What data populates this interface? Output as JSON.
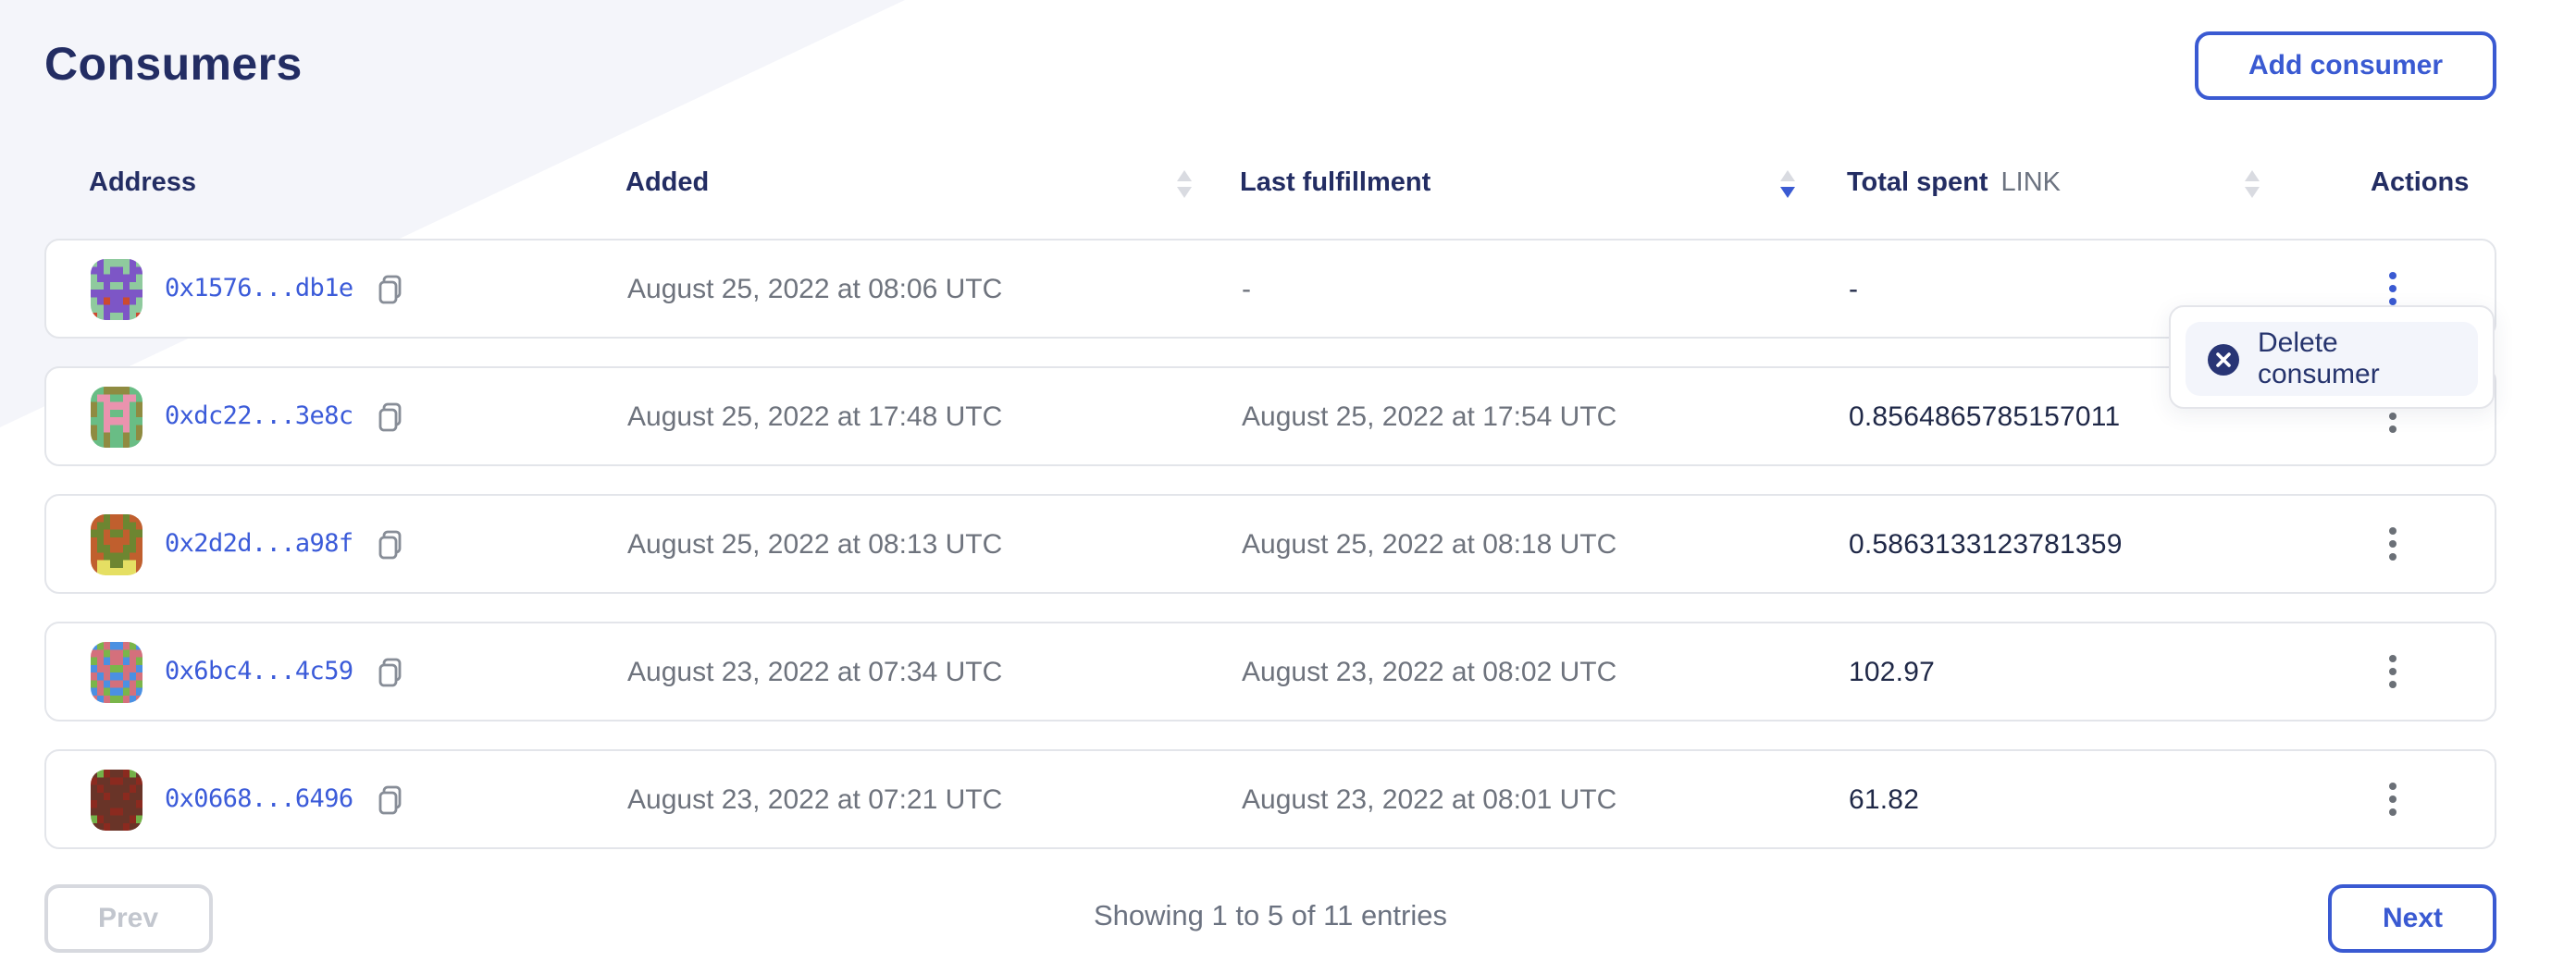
{
  "page": {
    "title": "Consumers"
  },
  "toolbar": {
    "add_consumer_label": "Add consumer"
  },
  "table": {
    "columns": [
      {
        "key": "address",
        "label": "Address",
        "sortable": false
      },
      {
        "key": "added",
        "label": "Added",
        "sortable": true,
        "sort": "none"
      },
      {
        "key": "last_fulfillment",
        "label": "Last fulfillment",
        "sortable": true,
        "sort": "desc"
      },
      {
        "key": "total_spent",
        "label": "Total spent",
        "unit": "LINK",
        "sortable": true,
        "sort": "none"
      },
      {
        "key": "actions",
        "label": "Actions",
        "sortable": false
      }
    ],
    "rows": [
      {
        "address": "0x1576...db1e",
        "added": "August 25, 2022 at 08:06 UTC",
        "last_fulfillment": "-",
        "total_spent": "-",
        "menu_open": true,
        "avatar": {
          "bg": "#8fca9e",
          "fg": "#7d56c6",
          "spot": "#cc4a2f",
          "pattern": [
            "01000010",
            "11011011",
            "01111110",
            "00100100",
            "11111111",
            "01211210",
            "00111100",
            "20100102"
          ]
        }
      },
      {
        "address": "0xdc22...3e8c",
        "added": "August 25, 2022 at 17:48 UTC",
        "last_fulfillment": "August 25, 2022 at 17:54 UTC",
        "total_spent": "0.8564865785157011",
        "menu_open": false,
        "avatar": {
          "bg": "#69bd85",
          "fg": "#8f8b41",
          "spot": "#ea93ae",
          "pattern": [
            "00111100",
            "02200220",
            "10222201",
            "10200201",
            "00222200",
            "10200201",
            "10100101",
            "00100100"
          ]
        }
      },
      {
        "address": "0x2d2d...a98f",
        "added": "August 25, 2022 at 08:13 UTC",
        "last_fulfillment": "August 25, 2022 at 08:18 UTC",
        "total_spent": "0.5863133123781359",
        "menu_open": false,
        "avatar": {
          "bg": "#6d8631",
          "fg": "#c05f2e",
          "spot": "#e5df63",
          "pattern": [
            "11011011",
            "10011001",
            "00100100",
            "10111101",
            "10011001",
            "11000011",
            "12200221",
            "12222221"
          ]
        }
      },
      {
        "address": "0x6bc4...4c59",
        "added": "August 23, 2022 at 07:34 UTC",
        "last_fulfillment": "August 23, 2022 at 08:02 UTC",
        "total_spent": "102.97",
        "menu_open": false,
        "avatar": {
          "bg": "#4b90e2",
          "fg": "#d4707c",
          "spot": "#7ab54a",
          "pattern": [
            "02100120",
            "11211211",
            "21011012",
            "01122110",
            "10100101",
            "21011012",
            "01200210",
            "10122101"
          ]
        }
      },
      {
        "address": "0x0668...6496",
        "added": "August 23, 2022 at 07:21 UTC",
        "last_fulfillment": "August 23, 2022 at 08:01 UTC",
        "total_spent": "61.82",
        "menu_open": false,
        "avatar": {
          "bg": "#8b2a1f",
          "fg": "#693428",
          "spot": "#74b149",
          "pattern": [
            "12011021",
            "01100110",
            "10111101",
            "11011011",
            "01111110",
            "11100111",
            "20111102",
            "11011011"
          ]
        }
      }
    ]
  },
  "menu": {
    "delete_consumer_label": "Delete consumer"
  },
  "pagination": {
    "prev_label": "Prev",
    "next_label": "Next",
    "summary": "Showing 1 to 5 of 11 entries"
  },
  "icons": {
    "copy": "copy-icon",
    "kebab": "kebab-menu-icon",
    "delete": "x-circle-icon",
    "sort": "sort-arrows-icon"
  },
  "colors": {
    "accent_blue": "#3a5ad2",
    "link_blue": "#3b5bd9",
    "heading_navy": "#232d63",
    "muted_gray": "#6e737d",
    "value_dark": "#1f2847",
    "wedge_bg": "#f4f5fa",
    "menu_item_bg": "#f3f5fb"
  }
}
